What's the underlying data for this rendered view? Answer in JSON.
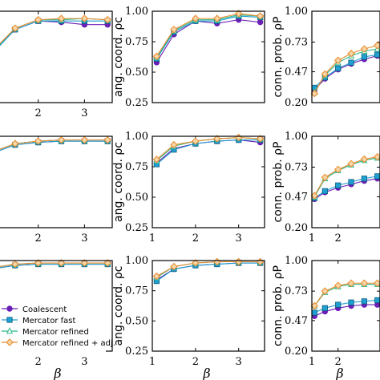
{
  "figure": {
    "xlabel": "β"
  },
  "legend": {
    "entries": [
      {
        "label": "Coalescent"
      },
      {
        "label": "Mercator fast"
      },
      {
        "label": "Mercator refined"
      },
      {
        "label": "Mercator refined + adj."
      }
    ]
  },
  "colors": {
    "coalescent": "#6a1fb5",
    "fast": "#1fa0d0",
    "refined": "#2fb78a",
    "adj": "#e88a2a",
    "frame": "#000000"
  },
  "chart_data": [
    {
      "type": "line",
      "row": 0,
      "col": 0,
      "xlim": [
        1,
        3.6
      ],
      "ylim": [
        0.25,
        1.0
      ],
      "xticks": [
        "2",
        "3"
      ],
      "yticks": [],
      "ylabel": "",
      "x": [
        1,
        1.5,
        2,
        2.5,
        3,
        3.5
      ],
      "series": [
        {
          "name": "Coalescent",
          "key": "coalescent",
          "values": [
            0.66,
            0.85,
            0.92,
            0.91,
            0.89,
            0.89
          ]
        },
        {
          "name": "Mercator fast",
          "key": "fast",
          "values": [
            0.65,
            0.85,
            0.92,
            0.92,
            0.92,
            0.92
          ]
        },
        {
          "name": "Mercator refined",
          "key": "refined",
          "values": [
            0.66,
            0.86,
            0.93,
            0.93,
            0.94,
            0.93
          ]
        },
        {
          "name": "Mercator refined + adj.",
          "key": "adj",
          "values": [
            0.67,
            0.86,
            0.93,
            0.94,
            0.94,
            0.93
          ]
        }
      ]
    },
    {
      "type": "line",
      "row": 0,
      "col": 1,
      "xlim": [
        1,
        3.6
      ],
      "ylim": [
        0.25,
        1.0
      ],
      "xticks": [],
      "yticks": [
        "0.25",
        "0.50",
        "0.75",
        "1.00"
      ],
      "ylabel": "ang. coord. ρc",
      "x": [
        1.1,
        1.5,
        2,
        2.5,
        3,
        3.5
      ],
      "series": [
        {
          "name": "Coalescent",
          "key": "coalescent",
          "values": [
            0.58,
            0.81,
            0.92,
            0.9,
            0.93,
            0.91
          ]
        },
        {
          "name": "Mercator fast",
          "key": "fast",
          "values": [
            0.61,
            0.83,
            0.92,
            0.92,
            0.96,
            0.95
          ]
        },
        {
          "name": "Mercator refined",
          "key": "refined",
          "values": [
            0.62,
            0.84,
            0.93,
            0.93,
            0.97,
            0.96
          ]
        },
        {
          "name": "Mercator refined + adj.",
          "key": "adj",
          "values": [
            0.63,
            0.85,
            0.94,
            0.94,
            0.98,
            0.96
          ]
        }
      ]
    },
    {
      "type": "line",
      "row": 0,
      "col": 2,
      "xlim": [
        1,
        3.6
      ],
      "ylim": [
        0.2,
        1.0
      ],
      "xticks": [],
      "yticks": [
        "0.20",
        "0.47",
        "0.73",
        "1.00"
      ],
      "ylabel": "conn. prob. ρP",
      "x": [
        1.1,
        1.5,
        2,
        2.5,
        3,
        3.5
      ],
      "series": [
        {
          "name": "Coalescent",
          "key": "coalescent",
          "values": [
            0.31,
            0.41,
            0.49,
            0.54,
            0.58,
            0.61
          ]
        },
        {
          "name": "Mercator fast",
          "key": "fast",
          "values": [
            0.33,
            0.42,
            0.5,
            0.55,
            0.6,
            0.62
          ]
        },
        {
          "name": "Mercator refined",
          "key": "refined",
          "values": [
            0.29,
            0.44,
            0.55,
            0.61,
            0.65,
            0.67
          ]
        },
        {
          "name": "Mercator refined + adj.",
          "key": "adj",
          "values": [
            0.28,
            0.45,
            0.57,
            0.63,
            0.67,
            0.7
          ]
        }
      ]
    },
    {
      "type": "line",
      "row": 1,
      "col": 0,
      "xlim": [
        1,
        3.6
      ],
      "ylim": [
        0.25,
        1.0
      ],
      "xticks": [
        "2",
        "3"
      ],
      "yticks": [],
      "ylabel": "",
      "x": [
        1,
        1.5,
        2,
        2.5,
        3,
        3.5
      ],
      "series": [
        {
          "name": "Coalescent",
          "key": "coalescent",
          "values": [
            0.86,
            0.93,
            0.95,
            0.96,
            0.96,
            0.96
          ]
        },
        {
          "name": "Mercator fast",
          "key": "fast",
          "values": [
            0.86,
            0.93,
            0.95,
            0.96,
            0.96,
            0.96
          ]
        },
        {
          "name": "Mercator refined",
          "key": "refined",
          "values": [
            0.87,
            0.94,
            0.96,
            0.97,
            0.97,
            0.97
          ]
        },
        {
          "name": "Mercator refined + adj.",
          "key": "adj",
          "values": [
            0.87,
            0.94,
            0.96,
            0.97,
            0.97,
            0.97
          ]
        }
      ]
    },
    {
      "type": "line",
      "row": 1,
      "col": 1,
      "xlim": [
        1,
        3.6
      ],
      "ylim": [
        0.25,
        1.0
      ],
      "xticks": [
        "1",
        "2",
        "3"
      ],
      "yticks": [
        "0.25",
        "0.50",
        "0.75",
        "1.00"
      ],
      "ylabel": "ang. coord. ρc",
      "x": [
        1.1,
        1.5,
        2,
        2.5,
        3,
        3.5
      ],
      "series": [
        {
          "name": "Coalescent",
          "key": "coalescent",
          "values": [
            0.78,
            0.9,
            0.94,
            0.96,
            0.97,
            0.95
          ]
        },
        {
          "name": "Mercator fast",
          "key": "fast",
          "values": [
            0.77,
            0.89,
            0.94,
            0.96,
            0.97,
            0.97
          ]
        },
        {
          "name": "Mercator refined",
          "key": "refined",
          "values": [
            0.8,
            0.92,
            0.96,
            0.98,
            0.99,
            0.98
          ]
        },
        {
          "name": "Mercator refined + adj.",
          "key": "adj",
          "values": [
            0.81,
            0.93,
            0.96,
            0.98,
            0.99,
            0.98
          ]
        }
      ]
    },
    {
      "type": "line",
      "row": 1,
      "col": 2,
      "xlim": [
        1,
        3.6
      ],
      "ylim": [
        0.2,
        1.0
      ],
      "xticks": [
        "1",
        "2"
      ],
      "yticks": [
        "0.20",
        "0.47",
        "0.73",
        "1.00"
      ],
      "ylabel": "conn. prob. ρP",
      "x": [
        1.1,
        1.5,
        2,
        2.5,
        3,
        3.5
      ],
      "series": [
        {
          "name": "Coalescent",
          "key": "coalescent",
          "values": [
            0.45,
            0.51,
            0.55,
            0.58,
            0.61,
            0.63
          ]
        },
        {
          "name": "Mercator fast",
          "key": "fast",
          "values": [
            0.46,
            0.52,
            0.57,
            0.6,
            0.63,
            0.65
          ]
        },
        {
          "name": "Mercator refined",
          "key": "refined",
          "values": [
            0.47,
            0.63,
            0.7,
            0.75,
            0.79,
            0.81
          ]
        },
        {
          "name": "Mercator refined + adj.",
          "key": "adj",
          "values": [
            0.48,
            0.64,
            0.71,
            0.76,
            0.8,
            0.82
          ]
        }
      ]
    },
    {
      "type": "line",
      "row": 2,
      "col": 0,
      "xlim": [
        1,
        3.6
      ],
      "ylim": [
        0.25,
        1.0
      ],
      "xticks": [
        "2",
        "3"
      ],
      "yticks": [],
      "ylabel": "",
      "x": [
        1,
        1.5,
        2,
        2.5,
        3,
        3.5
      ],
      "series": [
        {
          "name": "Coalescent",
          "key": "coalescent",
          "values": [
            0.93,
            0.96,
            0.97,
            0.97,
            0.97,
            0.97
          ]
        },
        {
          "name": "Mercator fast",
          "key": "fast",
          "values": [
            0.93,
            0.96,
            0.97,
            0.97,
            0.97,
            0.97
          ]
        },
        {
          "name": "Mercator refined",
          "key": "refined",
          "values": [
            0.94,
            0.97,
            0.98,
            0.98,
            0.98,
            0.98
          ]
        },
        {
          "name": "Mercator refined + adj.",
          "key": "adj",
          "values": [
            0.94,
            0.97,
            0.98,
            0.98,
            0.98,
            0.98
          ]
        }
      ]
    },
    {
      "type": "line",
      "row": 2,
      "col": 1,
      "xlim": [
        1,
        3.6
      ],
      "ylim": [
        0.25,
        1.0
      ],
      "xticks": [
        "1",
        "2",
        "3"
      ],
      "yticks": [
        "0.25",
        "0.50",
        "0.75",
        "1.00"
      ],
      "ylabel": "ang. coord. ρc",
      "x": [
        1.1,
        1.5,
        2,
        2.5,
        3,
        3.5
      ],
      "series": [
        {
          "name": "Coalescent",
          "key": "coalescent",
          "values": [
            0.84,
            0.93,
            0.96,
            0.97,
            0.98,
            0.98
          ]
        },
        {
          "name": "Mercator fast",
          "key": "fast",
          "values": [
            0.83,
            0.93,
            0.96,
            0.97,
            0.98,
            0.98
          ]
        },
        {
          "name": "Mercator refined",
          "key": "refined",
          "values": [
            0.86,
            0.95,
            0.98,
            0.99,
            0.99,
            0.99
          ]
        },
        {
          "name": "Mercator refined + adj.",
          "key": "adj",
          "values": [
            0.87,
            0.95,
            0.98,
            0.99,
            0.99,
            0.99
          ]
        }
      ]
    },
    {
      "type": "line",
      "row": 2,
      "col": 2,
      "xlim": [
        1,
        3.6
      ],
      "ylim": [
        0.2,
        1.0
      ],
      "xticks": [
        "1",
        "2"
      ],
      "yticks": [
        "0.20",
        "0.47",
        "0.73",
        "1.00"
      ],
      "ylabel": "conn. prob. ρP",
      "x": [
        1.1,
        1.5,
        2,
        2.5,
        3,
        3.5
      ],
      "series": [
        {
          "name": "Coalescent",
          "key": "coalescent",
          "values": [
            0.51,
            0.55,
            0.58,
            0.6,
            0.61,
            0.61
          ]
        },
        {
          "name": "Mercator fast",
          "key": "fast",
          "values": [
            0.54,
            0.58,
            0.61,
            0.63,
            0.64,
            0.65
          ]
        },
        {
          "name": "Mercator refined",
          "key": "refined",
          "values": [
            0.6,
            0.72,
            0.77,
            0.79,
            0.79,
            0.79
          ]
        },
        {
          "name": "Mercator refined + adj.",
          "key": "adj",
          "values": [
            0.6,
            0.73,
            0.78,
            0.8,
            0.8,
            0.8
          ]
        }
      ]
    }
  ]
}
